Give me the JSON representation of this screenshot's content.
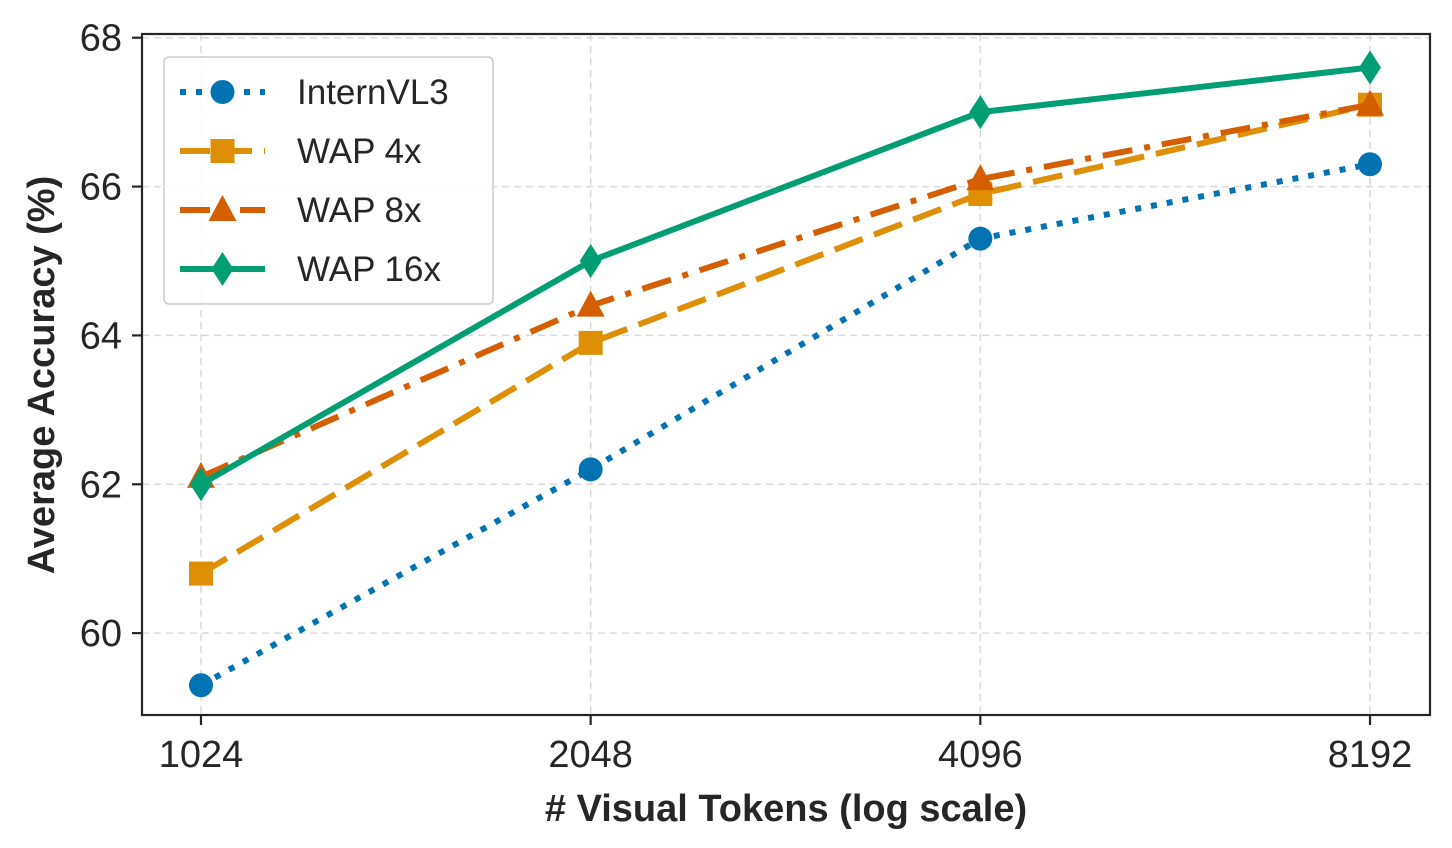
{
  "chart_data": {
    "type": "line",
    "xlabel": "# Visual Tokens (log scale)",
    "ylabel": "Average Accuracy (%)",
    "x_scale": "log2",
    "x": [
      1024,
      2048,
      4096,
      8192
    ],
    "x_tick_labels": [
      "1024",
      "2048",
      "4096",
      "8192"
    ],
    "ylim": [
      58.9,
      68.05
    ],
    "y_ticks": [
      60,
      62,
      64,
      66,
      68
    ],
    "y_tick_labels": [
      "60",
      "62",
      "64",
      "66",
      "68"
    ],
    "grid": true,
    "legend_position": "top-left",
    "series": [
      {
        "name": "InternVL3",
        "values": [
          59.3,
          62.2,
          65.3,
          66.3
        ],
        "color": "#0173b2",
        "line_style": "dotted",
        "marker": "circle"
      },
      {
        "name": "WAP 4x",
        "values": [
          60.8,
          63.9,
          65.9,
          67.1
        ],
        "color": "#de8f05",
        "line_style": "dashed",
        "marker": "square"
      },
      {
        "name": "WAP 8x",
        "values": [
          62.1,
          64.4,
          66.1,
          67.1
        ],
        "color": "#d55e00",
        "line_style": "dashdot",
        "marker": "triangle"
      },
      {
        "name": "WAP 16x",
        "values": [
          62.0,
          65.0,
          67.0,
          67.6
        ],
        "color": "#029e73",
        "line_style": "solid",
        "marker": "diamond"
      }
    ]
  }
}
